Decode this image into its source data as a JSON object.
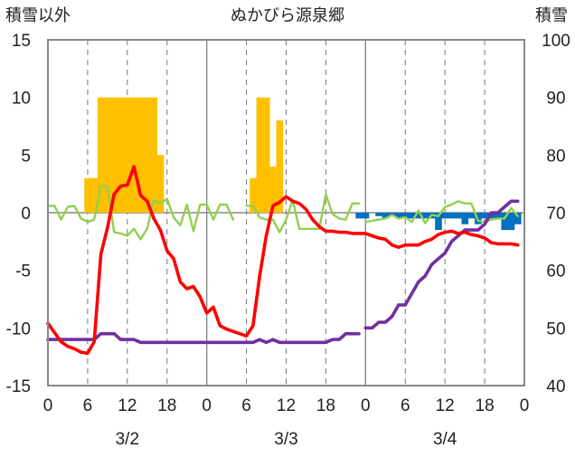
{
  "chart_data": {
    "type": "line",
    "title": "ぬかびら源泉郷",
    "ylabel_left": "積雪以外",
    "ylabel_right": "積雪",
    "ylim_left": [
      -15,
      15
    ],
    "ylim_right": [
      40,
      100
    ],
    "yticks_left": [
      "15",
      "10",
      "5",
      "0",
      "-5",
      "-10",
      "-15"
    ],
    "yticks_right": [
      "100",
      "90",
      "80",
      "70",
      "60",
      "50",
      "40"
    ],
    "x_range_hours": [
      0,
      72
    ],
    "xticks": [
      "0",
      "6",
      "12",
      "18",
      "0",
      "6",
      "12",
      "18",
      "0",
      "6",
      "12",
      "18",
      "0"
    ],
    "date_labels": [
      "3/2",
      "3/3",
      "3/4"
    ],
    "grid": "vertical dashed every 6h, solid day separators",
    "colors": {
      "snowfall": "#FFC000",
      "precipitation": "#0070C0",
      "temperature": "#FF0000",
      "humidity_like": "#92D050",
      "snow_depth": "#7030A0"
    },
    "series": [
      {
        "key": "snowfall",
        "kind": "bar",
        "axis": "left",
        "points": [
          [
            6,
            3
          ],
          [
            7,
            3
          ],
          [
            8,
            10
          ],
          [
            9,
            10
          ],
          [
            10,
            10
          ],
          [
            11,
            10
          ],
          [
            12,
            10
          ],
          [
            13,
            10
          ],
          [
            14,
            10
          ],
          [
            15,
            10
          ],
          [
            16,
            10
          ],
          [
            17,
            5
          ],
          [
            31,
            3
          ],
          [
            32,
            10
          ],
          [
            33,
            10
          ],
          [
            34,
            4
          ],
          [
            35,
            8
          ]
        ]
      },
      {
        "key": "precipitation",
        "kind": "bar",
        "axis": "left",
        "points": [
          [
            47,
            -0.5
          ],
          [
            48,
            -0.5
          ],
          [
            50,
            -0.3
          ],
          [
            51,
            -0.5
          ],
          [
            52,
            -0.3
          ],
          [
            53,
            -0.5
          ],
          [
            54,
            -0.5
          ],
          [
            55,
            -0.5
          ],
          [
            56,
            -0.5
          ],
          [
            57,
            -0.5
          ],
          [
            58,
            -0.5
          ],
          [
            59,
            -1.5
          ],
          [
            60,
            -0.5
          ],
          [
            61,
            -0.5
          ],
          [
            62,
            -0.5
          ],
          [
            63,
            -1
          ],
          [
            64,
            -0.5
          ],
          [
            65,
            -1
          ],
          [
            66,
            -0.5
          ],
          [
            67,
            -0.5
          ],
          [
            68,
            -0.5
          ],
          [
            69,
            -1.5
          ],
          [
            70,
            -1.5
          ],
          [
            71,
            -1
          ]
        ]
      },
      {
        "key": "temperature",
        "kind": "line",
        "axis": "left",
        "points": [
          [
            0,
            -9.6
          ],
          [
            1,
            -10.4
          ],
          [
            2,
            -11.2
          ],
          [
            3,
            -11.6
          ],
          [
            4,
            -11.8
          ],
          [
            5,
            -12.1
          ],
          [
            6,
            -12.2
          ],
          [
            7,
            -11.2
          ],
          [
            8,
            -3.6
          ],
          [
            9,
            -1.3
          ],
          [
            10,
            1.6
          ],
          [
            11,
            2.3
          ],
          [
            12,
            2.4
          ],
          [
            13,
            4
          ],
          [
            14,
            1.5
          ],
          [
            15,
            1
          ],
          [
            16,
            -0.5
          ],
          [
            17,
            -1.5
          ],
          [
            18,
            -3.3
          ],
          [
            19,
            -4
          ],
          [
            20,
            -6
          ],
          [
            21,
            -6.6
          ],
          [
            22,
            -6.4
          ],
          [
            23,
            -7.3
          ],
          [
            24,
            -8.7
          ],
          [
            25,
            -8.2
          ],
          [
            26,
            -9.8
          ],
          [
            27,
            -10.1
          ],
          [
            28,
            -10.3
          ],
          [
            29,
            -10.5
          ],
          [
            30,
            -10.7
          ],
          [
            31,
            -9.8
          ],
          [
            32,
            -5.5
          ],
          [
            33,
            -2
          ],
          [
            34,
            0.6
          ],
          [
            35,
            0.9
          ],
          [
            36,
            1.4
          ],
          [
            37,
            1
          ],
          [
            38,
            0.8
          ],
          [
            39,
            0.3
          ],
          [
            40,
            -0.6
          ],
          [
            41,
            -1.2
          ],
          [
            42,
            -1.6
          ],
          [
            43,
            -1.6
          ],
          [
            44,
            -1.7
          ],
          [
            45,
            -1.7
          ],
          [
            46,
            -1.8
          ],
          [
            48,
            -1.8
          ],
          [
            49,
            -2
          ],
          [
            50,
            -2.2
          ],
          [
            51,
            -2.3
          ],
          [
            52,
            -2.8
          ],
          [
            53,
            -3
          ],
          [
            54,
            -2.8
          ],
          [
            55,
            -2.8
          ],
          [
            56,
            -2.8
          ],
          [
            57,
            -2.5
          ],
          [
            58,
            -2.3
          ],
          [
            59,
            -1.9
          ],
          [
            60,
            -1.7
          ],
          [
            61,
            -1.6
          ],
          [
            62,
            -1.8
          ],
          [
            63,
            -1.7
          ],
          [
            64,
            -1.9
          ],
          [
            65,
            -2
          ],
          [
            66,
            -2.2
          ],
          [
            67,
            -2.6
          ],
          [
            68,
            -2.7
          ],
          [
            69,
            -2.7
          ],
          [
            70,
            -2.7
          ],
          [
            71,
            -2.8
          ]
        ]
      },
      {
        "key": "humidity_like",
        "kind": "line",
        "axis": "left",
        "segments": [
          [
            [
              0,
              0.6
            ],
            [
              1,
              0.6
            ],
            [
              2,
              -0.6
            ],
            [
              3,
              0.5
            ],
            [
              4,
              0.6
            ],
            [
              5,
              -0.5
            ],
            [
              6,
              -0.8
            ],
            [
              7,
              -0.6
            ],
            [
              8,
              2.3
            ],
            [
              9,
              2.3
            ],
            [
              10,
              -1.7
            ],
            [
              11,
              -1.8
            ],
            [
              12,
              -2
            ],
            [
              13,
              -1.4
            ],
            [
              14,
              -2.3
            ],
            [
              15,
              -1.4
            ],
            [
              16,
              1.1
            ],
            [
              17,
              0.8
            ],
            [
              18,
              1.2
            ],
            [
              19,
              -0.4
            ],
            [
              20,
              -1.1
            ],
            [
              21,
              0.7
            ],
            [
              22,
              -1.6
            ],
            [
              23,
              0.7
            ],
            [
              24,
              0.7
            ],
            [
              25,
              -0.6
            ],
            [
              26,
              0.7
            ],
            [
              27,
              0.7
            ],
            [
              28,
              -0.6
            ]
          ],
          [
            [
              30,
              0.6
            ],
            [
              31,
              0.6
            ],
            [
              32,
              -0.4
            ],
            [
              33,
              -0.6
            ],
            [
              34,
              -0.6
            ],
            [
              35,
              -1.7
            ],
            [
              36,
              -0.6
            ],
            [
              37,
              1.1
            ],
            [
              38,
              -1.4
            ],
            [
              39,
              -1.4
            ],
            [
              40,
              -1.4
            ],
            [
              41,
              -1.4
            ],
            [
              42,
              1.6
            ],
            [
              43,
              -0.1
            ],
            [
              44,
              -0.5
            ],
            [
              45,
              -0.6
            ],
            [
              46,
              0.8
            ],
            [
              47,
              0.8
            ]
          ],
          [
            [
              48,
              -0.8
            ],
            [
              49,
              -0.7
            ],
            [
              50,
              -0.6
            ],
            [
              51,
              -0.5
            ],
            [
              52,
              -0.2
            ],
            [
              53,
              -0.5
            ],
            [
              54,
              -0.4
            ],
            [
              55,
              -0.8
            ],
            [
              56,
              0.2
            ],
            [
              57,
              -0.9
            ],
            [
              58,
              -0.2
            ],
            [
              59,
              -0.3
            ],
            [
              60,
              0.5
            ],
            [
              61,
              0.7
            ],
            [
              62,
              1
            ],
            [
              63,
              0.8
            ],
            [
              64,
              0.8
            ],
            [
              65,
              -0.7
            ],
            [
              66,
              -0.8
            ],
            [
              67,
              -0.6
            ],
            [
              68,
              -0.5
            ],
            [
              69,
              -0.5
            ],
            [
              70,
              0.4
            ],
            [
              71,
              -0.3
            ]
          ]
        ]
      },
      {
        "key": "snow_depth",
        "kind": "line",
        "axis": "right",
        "segments": [
          [
            [
              0,
              48
            ],
            [
              1,
              48
            ],
            [
              2,
              48
            ],
            [
              3,
              48
            ],
            [
              4,
              48
            ],
            [
              5,
              48
            ],
            [
              6,
              48
            ],
            [
              7,
              48
            ],
            [
              8,
              49
            ],
            [
              9,
              49
            ],
            [
              10,
              49
            ],
            [
              11,
              48
            ],
            [
              12,
              48
            ],
            [
              13,
              48
            ],
            [
              14,
              47.5
            ],
            [
              15,
              47.5
            ],
            [
              16,
              47.5
            ],
            [
              17,
              47.5
            ],
            [
              18,
              47.5
            ],
            [
              19,
              47.5
            ],
            [
              20,
              47.5
            ],
            [
              21,
              47.5
            ],
            [
              22,
              47.5
            ],
            [
              23,
              47.5
            ],
            [
              24,
              47.5
            ],
            [
              25,
              47.5
            ],
            [
              26,
              47.5
            ],
            [
              27,
              47.5
            ],
            [
              28,
              47.5
            ],
            [
              29,
              47.5
            ],
            [
              30,
              47.5
            ],
            [
              31,
              47.5
            ],
            [
              32,
              48
            ],
            [
              33,
              47.5
            ],
            [
              34,
              48
            ],
            [
              35,
              47.5
            ],
            [
              36,
              47.5
            ],
            [
              37,
              47.5
            ],
            [
              38,
              47.5
            ],
            [
              39,
              47.5
            ],
            [
              40,
              47.5
            ],
            [
              41,
              47.5
            ],
            [
              42,
              47.5
            ],
            [
              43,
              48
            ],
            [
              44,
              48
            ],
            [
              45,
              49
            ],
            [
              46,
              49
            ],
            [
              47,
              49
            ]
          ],
          [
            [
              48,
              50
            ],
            [
              49,
              50
            ],
            [
              50,
              51
            ],
            [
              51,
              51
            ],
            [
              52,
              52
            ],
            [
              53,
              54
            ],
            [
              54,
              54
            ],
            [
              55,
              56
            ],
            [
              56,
              58
            ],
            [
              57,
              59
            ],
            [
              58,
              61
            ],
            [
              59,
              62
            ],
            [
              60,
              63
            ],
            [
              61,
              65
            ],
            [
              62,
              66
            ],
            [
              63,
              67
            ],
            [
              64,
              67
            ],
            [
              65,
              67
            ],
            [
              66,
              68
            ],
            [
              67,
              70
            ],
            [
              68,
              70
            ],
            [
              69,
              71
            ],
            [
              70,
              72
            ],
            [
              71,
              72
            ]
          ]
        ]
      }
    ]
  }
}
